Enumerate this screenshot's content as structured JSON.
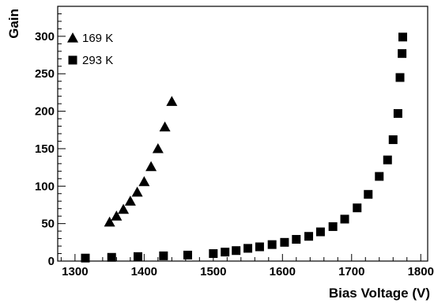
{
  "chart_data": {
    "type": "scatter",
    "xlabel": "Bias Voltage (V)",
    "ylabel": "Gain",
    "xlim": [
      1275,
      1810
    ],
    "ylim": [
      0,
      340
    ],
    "x_ticks": [
      1300,
      1400,
      1500,
      1600,
      1700,
      1800
    ],
    "y_ticks": [
      0,
      50,
      100,
      150,
      200,
      250,
      300
    ],
    "grid": false,
    "legend_position": "top-left",
    "series": [
      {
        "name": "169 K",
        "marker": "triangle",
        "color": "#000000",
        "x": [
          1350,
          1360,
          1370,
          1380,
          1390,
          1400,
          1410,
          1420,
          1430,
          1440
        ],
        "y": [
          52,
          60,
          69,
          80,
          92,
          106,
          126,
          150,
          179,
          213
        ]
      },
      {
        "name": "293 K",
        "marker": "square",
        "color": "#000000",
        "x": [
          1315,
          1353,
          1391,
          1428,
          1463,
          1500,
          1517,
          1533,
          1550,
          1567,
          1585,
          1603,
          1620,
          1638,
          1655,
          1673,
          1690,
          1708,
          1724,
          1740,
          1752,
          1760,
          1767,
          1770,
          1773,
          1774
        ],
        "y": [
          4,
          5,
          6,
          7,
          8,
          10,
          12,
          14,
          17,
          19,
          22,
          25,
          29,
          33,
          39,
          46,
          56,
          71,
          89,
          113,
          135,
          162,
          197,
          245,
          277,
          299
        ]
      }
    ]
  }
}
